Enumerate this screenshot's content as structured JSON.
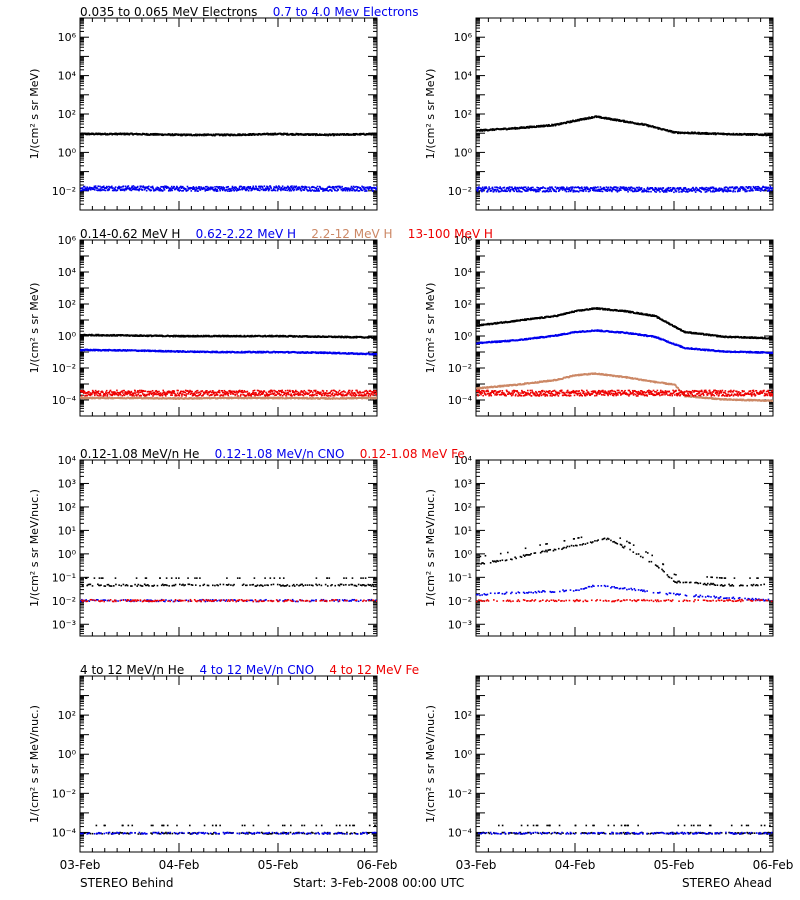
{
  "colors": {
    "black": "#000000",
    "blue": "#0000ee",
    "brown": "#cc8866",
    "red": "#ee0000"
  },
  "footer": {
    "left": "STEREO Behind",
    "center": "Start:   3-Feb-2008 00:00 UTC",
    "right": "STEREO Ahead"
  },
  "x_ticks": [
    "03-Feb",
    "04-Feb",
    "05-Feb",
    "06-Feb"
  ],
  "rows": [
    {
      "legend": [
        {
          "text": "0.035 to 0.065 MeV Electrons",
          "color": "#000000"
        },
        {
          "text": "0.7 to 4.0 Mev Electrons",
          "color": "#0000ee"
        }
      ],
      "ylabel": "1/(cm² s sr MeV)",
      "ylim_exp": [
        -3,
        7
      ],
      "ytick_exps": [
        -2,
        0,
        2,
        4,
        6
      ]
    },
    {
      "legend": [
        {
          "text": "0.14-0.62 MeV H",
          "color": "#000000"
        },
        {
          "text": "0.62-2.22 MeV H",
          "color": "#0000ee"
        },
        {
          "text": "2.2-12 MeV H",
          "color": "#cc8866"
        },
        {
          "text": "13-100 MeV H",
          "color": "#ee0000"
        }
      ],
      "ylabel": "1/(cm² s sr MeV)",
      "ylim_exp": [
        -5,
        6
      ],
      "ytick_exps": [
        -4,
        -2,
        0,
        2,
        4,
        6
      ]
    },
    {
      "legend": [
        {
          "text": "0.12-1.08 MeV/n He",
          "color": "#000000"
        },
        {
          "text": "0.12-1.08 MeV/n CNO",
          "color": "#0000ee"
        },
        {
          "text": "0.12-1.08 MeV Fe",
          "color": "#ee0000"
        }
      ],
      "ylabel": "1/(cm² s sr MeV/nuc.)",
      "ylim_exp": [
        -3.5,
        4
      ],
      "ytick_exps": [
        -3,
        -2,
        -1,
        0,
        1,
        2,
        3,
        4
      ]
    },
    {
      "legend": [
        {
          "text": "4 to 12 MeV/n He",
          "color": "#000000"
        },
        {
          "text": "4 to 12 MeV/n CNO",
          "color": "#0000ee"
        },
        {
          "text": "4 to 12 MeV Fe",
          "color": "#ee0000"
        }
      ],
      "ylabel": "1/(cm² s sr MeV/nuc.)",
      "ylim_exp": [
        -5,
        4
      ],
      "ytick_exps": [
        -4,
        -2,
        0,
        2
      ]
    }
  ],
  "chart_data": [
    {
      "type": "scatter",
      "panel": "behind-electrons",
      "yscale": "log",
      "x_days": [
        0,
        3
      ],
      "series": [
        {
          "name": "0.035 to 0.065 MeV Electrons",
          "color": "#000000",
          "x": [
            0,
            0.5,
            1,
            1.5,
            2,
            2.5,
            3
          ],
          "y": [
            10,
            10,
            9,
            9,
            10,
            9,
            10
          ]
        },
        {
          "name": "0.7 to 4.0 Mev Electrons",
          "color": "#0000ee",
          "x": [
            0,
            0.5,
            1,
            1.5,
            2,
            2.5,
            3
          ],
          "y": [
            0.015,
            0.015,
            0.014,
            0.014,
            0.015,
            0.014,
            0.014
          ]
        }
      ]
    },
    {
      "type": "scatter",
      "panel": "ahead-electrons",
      "yscale": "log",
      "x_days": [
        0,
        3
      ],
      "series": [
        {
          "name": "0.035 to 0.065 MeV Electrons",
          "color": "#000000",
          "x": [
            0,
            0.4,
            0.8,
            1.0,
            1.2,
            1.4,
            1.7,
            2.0,
            2.5,
            3
          ],
          "y": [
            15,
            20,
            30,
            50,
            80,
            55,
            30,
            12,
            10,
            9
          ]
        },
        {
          "name": "0.7 to 4.0 Mev Electrons",
          "color": "#0000ee",
          "x": [
            0,
            0.5,
            1,
            1.5,
            2,
            2.5,
            3
          ],
          "y": [
            0.013,
            0.013,
            0.013,
            0.013,
            0.012,
            0.013,
            0.014
          ]
        }
      ]
    },
    {
      "type": "scatter",
      "panel": "behind-protons",
      "yscale": "log",
      "x_days": [
        0,
        3
      ],
      "series": [
        {
          "name": "0.14-0.62 MeV H",
          "color": "#000000",
          "x": [
            0,
            0.5,
            1,
            1.5,
            2,
            2.5,
            3
          ],
          "y": [
            1.3,
            1.2,
            1.1,
            1.1,
            1.1,
            1.0,
            0.9
          ]
        },
        {
          "name": "0.62-2.22 MeV H",
          "color": "#0000ee",
          "x": [
            0,
            0.5,
            1,
            1.5,
            2,
            2.5,
            3
          ],
          "y": [
            0.15,
            0.14,
            0.12,
            0.11,
            0.11,
            0.1,
            0.08
          ]
        },
        {
          "name": "2.2-12 MeV H",
          "color": "#cc8866",
          "x": [
            0,
            0.5,
            1,
            1.5,
            2,
            2.5,
            3
          ],
          "y": [
            0.00015,
            0.00015,
            0.00014,
            0.00015,
            0.00015,
            0.00014,
            0.00015
          ]
        },
        {
          "name": "13-100 MeV H",
          "color": "#ee0000",
          "x": [
            0,
            0.5,
            1,
            1.5,
            2,
            2.5,
            3
          ],
          "y": [
            0.0003,
            0.0003,
            0.0003,
            0.0003,
            0.0003,
            0.0003,
            0.0003
          ]
        }
      ]
    },
    {
      "type": "scatter",
      "panel": "ahead-protons",
      "yscale": "log",
      "x_days": [
        0,
        3
      ],
      "series": [
        {
          "name": "0.14-0.62 MeV H",
          "color": "#000000",
          "x": [
            0,
            0.4,
            0.8,
            1.0,
            1.2,
            1.5,
            1.8,
            2.1,
            2.5,
            3
          ],
          "y": [
            5,
            10,
            20,
            40,
            60,
            40,
            20,
            2,
            1,
            0.8
          ]
        },
        {
          "name": "0.62-2.22 MeV H",
          "color": "#0000ee",
          "x": [
            0,
            0.4,
            0.8,
            1.0,
            1.2,
            1.5,
            1.8,
            2.1,
            2.5,
            3
          ],
          "y": [
            0.4,
            0.6,
            1.2,
            2,
            2.5,
            1.8,
            1,
            0.2,
            0.12,
            0.1
          ]
        },
        {
          "name": "2.2-12 MeV H",
          "color": "#cc8866",
          "x": [
            0,
            0.4,
            0.8,
            1.0,
            1.2,
            1.5,
            1.8,
            2.0,
            2.1,
            2.5,
            3
          ],
          "y": [
            0.0006,
            0.001,
            0.002,
            0.004,
            0.005,
            0.003,
            0.0015,
            0.001,
            0.0002,
            0.00012,
            0.0001
          ]
        },
        {
          "name": "13-100 MeV H",
          "color": "#ee0000",
          "x": [
            0,
            0.5,
            1,
            1.5,
            2,
            2.5,
            3
          ],
          "y": [
            0.0003,
            0.0003,
            0.0003,
            0.0003,
            0.0003,
            0.0003,
            0.0003
          ]
        }
      ]
    },
    {
      "type": "scatter",
      "panel": "behind-heavy-low",
      "yscale": "log",
      "x_days": [
        0,
        3
      ],
      "series": [
        {
          "name": "0.12-1.08 MeV/n He",
          "color": "#000000",
          "x": [
            0,
            1,
            2,
            3
          ],
          "y": [
            0.05,
            0.05,
            0.05,
            0.05
          ]
        },
        {
          "name": "0.12-1.08 MeV/n CNO",
          "color": "#0000ee",
          "x": [
            0,
            1,
            2,
            3
          ],
          "y": [
            0.011,
            0.011,
            0.011,
            0.011
          ]
        },
        {
          "name": "0.12-1.08 MeV Fe",
          "color": "#ee0000",
          "x": [
            0,
            1,
            2,
            3
          ],
          "y": [
            0.011,
            0.011,
            0.011,
            0.011
          ]
        }
      ]
    },
    {
      "type": "scatter",
      "panel": "ahead-heavy-low",
      "yscale": "log",
      "x_days": [
        0,
        3
      ],
      "series": [
        {
          "name": "0.12-1.08 MeV/n He",
          "color": "#000000",
          "x": [
            0,
            0.3,
            0.6,
            0.9,
            1.1,
            1.3,
            1.5,
            1.8,
            2.0,
            2.5,
            3
          ],
          "y": [
            0.4,
            0.6,
            1.2,
            2,
            3,
            5,
            2,
            0.4,
            0.07,
            0.05,
            0.05
          ]
        },
        {
          "name": "0.12-1.08 MeV/n CNO",
          "color": "#0000ee",
          "x": [
            0,
            1,
            1.2,
            2,
            3
          ],
          "y": [
            0.02,
            0.03,
            0.05,
            0.02,
            0.011
          ]
        },
        {
          "name": "0.12-1.08 MeV Fe",
          "color": "#ee0000",
          "x": [
            0,
            1,
            2,
            3
          ],
          "y": [
            0.011,
            0.011,
            0.011,
            0.011
          ]
        }
      ]
    },
    {
      "type": "scatter",
      "panel": "behind-heavy-high",
      "yscale": "log",
      "x_days": [
        0,
        3
      ],
      "series": [
        {
          "name": "4 to 12 MeV/n He",
          "color": "#000000",
          "x": [
            0,
            1,
            2,
            3
          ],
          "y": [
            0.0001,
            0.0001,
            0.0001,
            0.0001
          ]
        },
        {
          "name": "4 to 12 MeV/n CNO",
          "color": "#0000ee",
          "x": [
            0,
            1,
            2,
            3
          ],
          "y": [
            0.0001,
            0.0001,
            0.0001,
            0.0001
          ]
        }
      ]
    },
    {
      "type": "scatter",
      "panel": "ahead-heavy-high",
      "yscale": "log",
      "x_days": [
        0,
        3
      ],
      "series": [
        {
          "name": "4 to 12 MeV/n He",
          "color": "#000000",
          "x": [
            0,
            1,
            2,
            3
          ],
          "y": [
            0.0001,
            0.0001,
            0.0001,
            0.0001
          ]
        },
        {
          "name": "4 to 12 MeV/n CNO",
          "color": "#0000ee",
          "x": [
            0,
            1,
            2,
            3
          ],
          "y": [
            0.0001,
            0.0001,
            0.0001,
            0.0001
          ]
        }
      ]
    }
  ]
}
